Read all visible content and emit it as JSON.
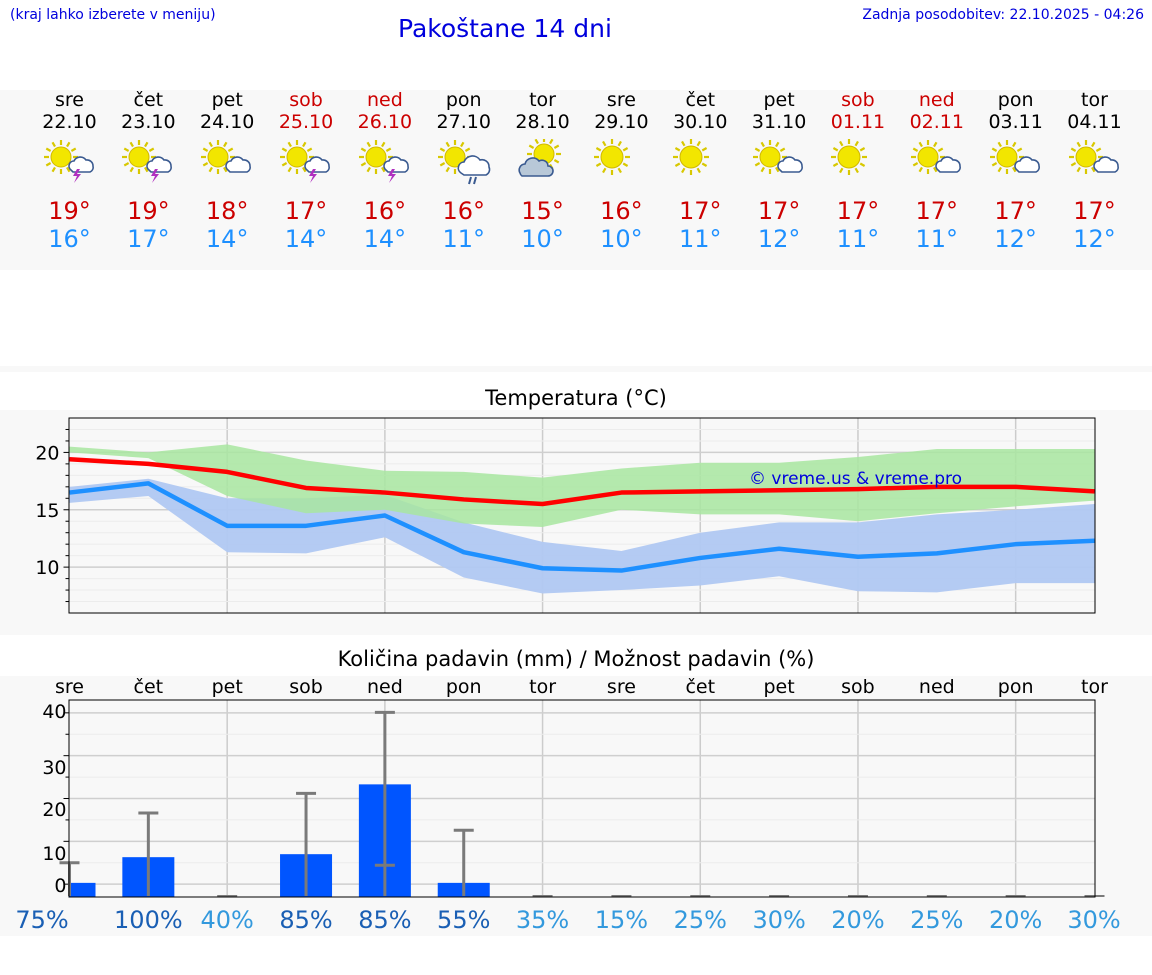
{
  "header": {
    "left_note": "(kraj lahko izberete v meniju)",
    "title": "Pakoštane 14 dni",
    "updated": "Zadnja posodobitev: 22.10.2025 - 04:26"
  },
  "colors": {
    "max": "#ff0000",
    "min": "#1e90ff",
    "max_band": "#a8e6a0",
    "min_band": "#b0c8f2",
    "bar": "#0055ff",
    "weekend": "#cc0000"
  },
  "days": [
    {
      "name": "sre",
      "date": "22.10",
      "weekend": false,
      "icon": "sun-cloud-storm-icon",
      "tmax": "19°",
      "tmin": "16°"
    },
    {
      "name": "čet",
      "date": "23.10",
      "weekend": false,
      "icon": "sun-cloud-storm-icon",
      "tmax": "19°",
      "tmin": "17°"
    },
    {
      "name": "pet",
      "date": "24.10",
      "weekend": false,
      "icon": "sun-cloud-icon",
      "tmax": "18°",
      "tmin": "14°"
    },
    {
      "name": "sob",
      "date": "25.10",
      "weekend": true,
      "icon": "sun-cloud-storm-icon",
      "tmax": "17°",
      "tmin": "14°"
    },
    {
      "name": "ned",
      "date": "26.10",
      "weekend": true,
      "icon": "sun-cloud-storm-icon",
      "tmax": "16°",
      "tmin": "14°"
    },
    {
      "name": "pon",
      "date": "27.10",
      "weekend": false,
      "icon": "sun-cloud-rain-icon",
      "tmax": "16°",
      "tmin": "11°"
    },
    {
      "name": "tor",
      "date": "28.10",
      "weekend": false,
      "icon": "cloud-sun-icon",
      "tmax": "15°",
      "tmin": "10°"
    },
    {
      "name": "sre",
      "date": "29.10",
      "weekend": false,
      "icon": "sun-icon",
      "tmax": "16°",
      "tmin": "10°"
    },
    {
      "name": "čet",
      "date": "30.10",
      "weekend": false,
      "icon": "sun-icon",
      "tmax": "17°",
      "tmin": "11°"
    },
    {
      "name": "pet",
      "date": "31.10",
      "weekend": false,
      "icon": "sun-cloud-icon",
      "tmax": "17°",
      "tmin": "12°"
    },
    {
      "name": "sob",
      "date": "01.11",
      "weekend": true,
      "icon": "sun-icon",
      "tmax": "17°",
      "tmin": "11°"
    },
    {
      "name": "ned",
      "date": "02.11",
      "weekend": true,
      "icon": "sun-cloud-icon",
      "tmax": "17°",
      "tmin": "11°"
    },
    {
      "name": "pon",
      "date": "03.11",
      "weekend": false,
      "icon": "sun-cloud-icon",
      "tmax": "17°",
      "tmin": "12°"
    },
    {
      "name": "tor",
      "date": "04.11",
      "weekend": false,
      "icon": "sun-cloud-icon",
      "tmax": "17°",
      "tmin": "12°"
    }
  ],
  "chart_data": [
    {
      "type": "line",
      "title": "Temperatura (°C)",
      "watermark": "© vreme.us & vreme.pro",
      "x_labels": [
        "sre",
        "čet",
        "pet",
        "sob",
        "ned",
        "pon",
        "tor",
        "sre",
        "čet",
        "pet",
        "sob",
        "ned",
        "pon",
        "tor"
      ],
      "ylim": [
        6,
        23
      ],
      "yticks": [
        10,
        15,
        20
      ],
      "grid": true,
      "series": [
        {
          "role": "max",
          "values": [
            19.4,
            19.0,
            18.3,
            16.9,
            16.5,
            15.9,
            15.5,
            16.5,
            16.6,
            16.7,
            16.8,
            17.0,
            17.0,
            16.6
          ]
        },
        {
          "role": "min",
          "values": [
            16.5,
            17.3,
            13.6,
            13.6,
            14.5,
            11.3,
            9.9,
            9.7,
            10.8,
            11.6,
            10.9,
            11.2,
            12.0,
            12.3
          ]
        }
      ],
      "bands": [
        {
          "role": "max_range",
          "low": [
            20.0,
            19.5,
            16.2,
            14.7,
            15.0,
            13.8,
            13.5,
            15.0,
            14.6,
            14.6,
            14.0,
            14.7,
            15.3,
            15.8
          ],
          "high": [
            20.5,
            20.0,
            20.7,
            19.3,
            18.4,
            18.3,
            17.8,
            18.6,
            19.1,
            19.1,
            19.6,
            20.3,
            20.3,
            20.3
          ]
        },
        {
          "role": "min_range",
          "low": [
            15.6,
            16.2,
            11.3,
            11.2,
            12.6,
            9.1,
            7.7,
            8.0,
            8.4,
            9.2,
            7.9,
            7.8,
            8.6,
            8.6
          ],
          "high": [
            17.0,
            17.7,
            16.0,
            16.0,
            16.3,
            13.9,
            12.2,
            11.4,
            13.0,
            13.9,
            13.9,
            14.6,
            15.0,
            15.5
          ]
        }
      ]
    },
    {
      "type": "bar",
      "title": "Količina padavin (mm) / Možnost padavin (%)",
      "categories": [
        "sre",
        "čet",
        "pet",
        "sob",
        "ned",
        "pon",
        "tor",
        "sre",
        "čet",
        "pet",
        "sob",
        "ned",
        "pon",
        "tor"
      ],
      "values": [
        0.3,
        6.3,
        0,
        7.0,
        23.3,
        0.3,
        0,
        0,
        0,
        0,
        0,
        0,
        0,
        0
      ],
      "error_high": [
        5.0,
        16.6,
        0,
        21.2,
        40.1,
        12.6,
        0,
        0,
        0,
        0,
        0,
        0,
        0,
        0
      ],
      "error_low": [
        0,
        0,
        0,
        0,
        4.4,
        0,
        0,
        0,
        0,
        0,
        0,
        0,
        0,
        0
      ],
      "chance": [
        "75%",
        "100%",
        "40%",
        "85%",
        "85%",
        "55%",
        "35%",
        "15%",
        "25%",
        "30%",
        "20%",
        "25%",
        "20%",
        "30%"
      ],
      "chance_dark": [
        true,
        true,
        false,
        true,
        true,
        true,
        false,
        false,
        false,
        false,
        false,
        false,
        false,
        false
      ],
      "ylim": [
        -3,
        43
      ],
      "yticks": [
        0,
        10,
        20,
        30,
        40
      ],
      "grid": true
    }
  ]
}
